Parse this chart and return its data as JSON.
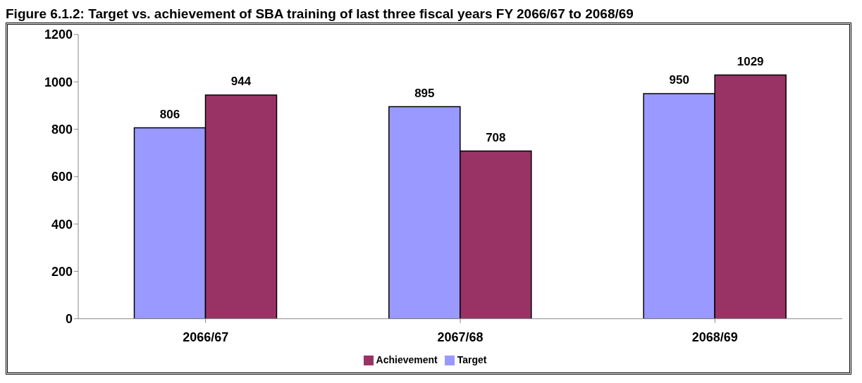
{
  "chart_data": {
    "type": "bar",
    "title": "Figure 6.1.2: Target vs. achievement of SBA training of last three fiscal years FY 2066/67 to 2068/69",
    "categories": [
      "2066/67",
      "2067/68",
      "2068/69"
    ],
    "series": [
      {
        "name": "Target",
        "color": "#9999ff",
        "values": [
          806,
          895,
          950
        ]
      },
      {
        "name": "Achievement",
        "color": "#993366",
        "values": [
          944,
          708,
          1029
        ]
      }
    ],
    "ylim": [
      0,
      1200
    ],
    "yticks": [
      0,
      200,
      400,
      600,
      800,
      1000,
      1200
    ],
    "grid": false,
    "legend": "bottom",
    "data_labels": true
  }
}
